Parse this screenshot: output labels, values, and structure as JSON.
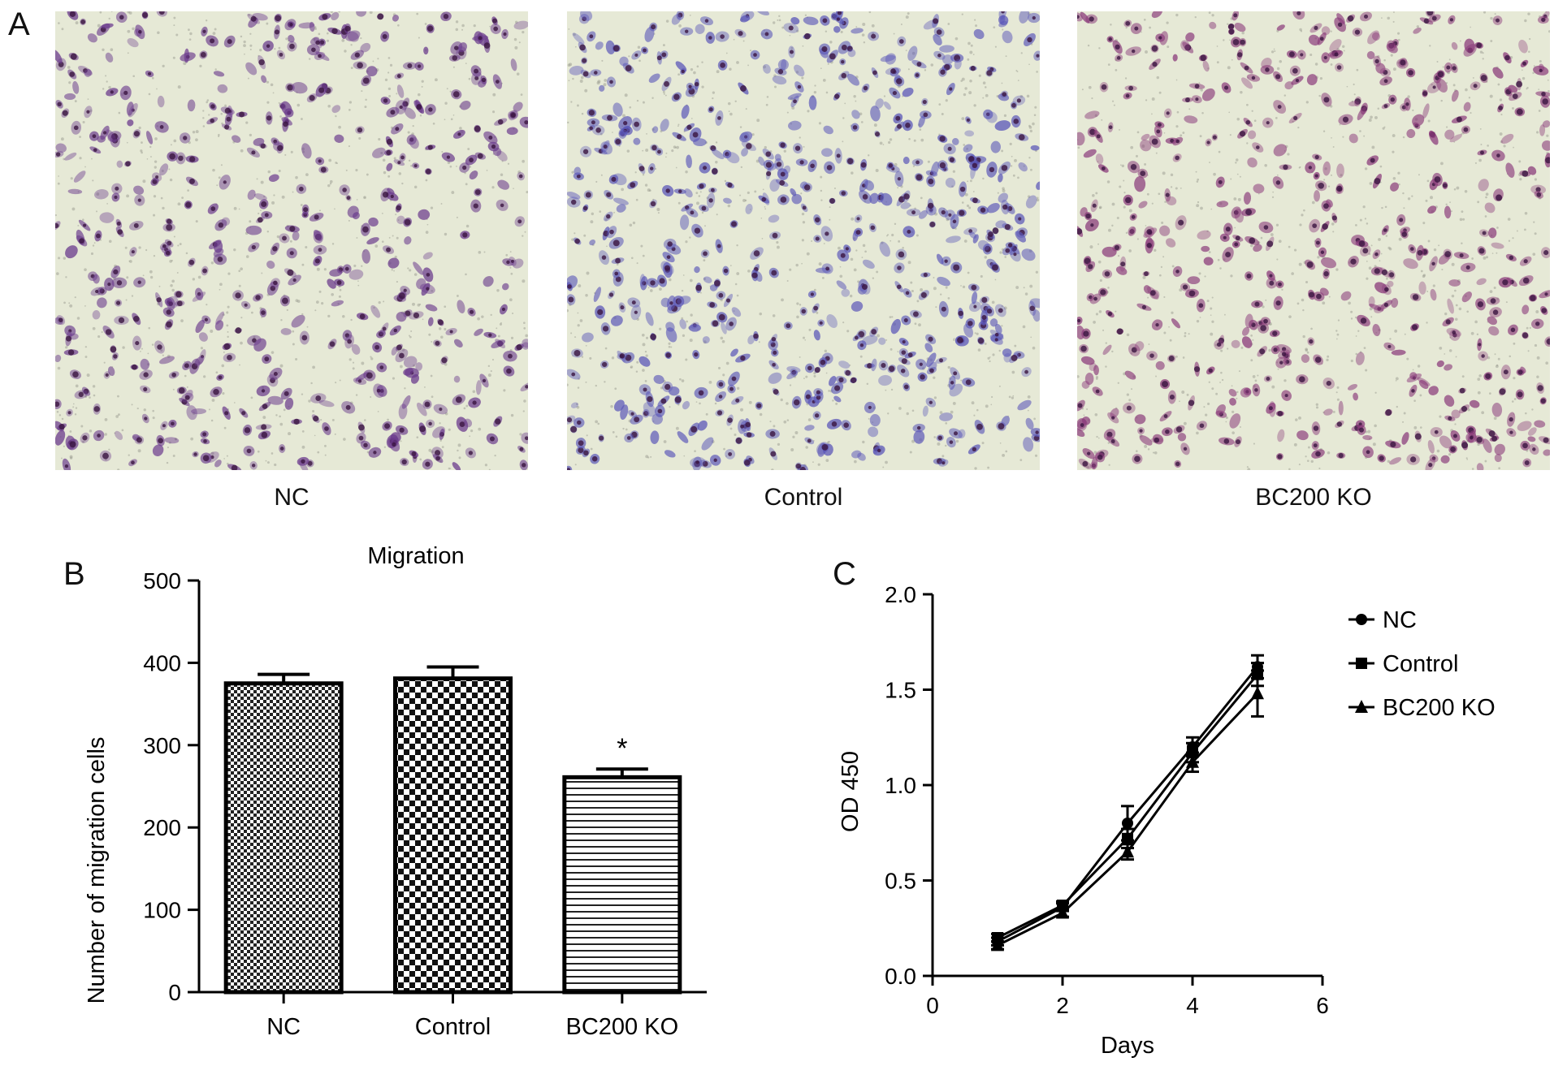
{
  "panel_labels": {
    "a": "A",
    "b": "B",
    "c": "C"
  },
  "micrographs": [
    {
      "caption": "NC",
      "cell_tint": "#6a3a8c"
    },
    {
      "caption": "Control",
      "cell_tint": "#5a56b8"
    },
    {
      "caption": "BC200 KO",
      "cell_tint": "#8a3a7a"
    }
  ],
  "chart_data": [
    {
      "type": "bar",
      "title": "Migration",
      "ylabel": "Number of migration cells",
      "xlabel": "",
      "ylim": [
        0,
        500
      ],
      "yticks": [
        "0",
        "100",
        "200",
        "300",
        "400",
        "500"
      ],
      "categories": [
        "NC",
        "Control",
        "BC200 KO"
      ],
      "values": [
        375,
        381,
        261
      ],
      "errors": [
        11,
        14,
        10
      ],
      "patterns": [
        "fine-check",
        "coarse-check",
        "horizontal-lines"
      ],
      "significance": [
        "",
        "",
        "*"
      ]
    },
    {
      "type": "line",
      "xlabel": "Days",
      "ylabel": "OD 450",
      "xlim": [
        0,
        6
      ],
      "ylim": [
        0,
        2
      ],
      "xticks": [
        "0",
        "2",
        "4",
        "6"
      ],
      "yticks": [
        "0.0",
        "0.5",
        "1.0",
        "1.5",
        "2.0"
      ],
      "x": [
        1,
        2,
        3,
        4,
        5
      ],
      "legend_position": "right",
      "series": [
        {
          "name": "NC",
          "marker": "circle",
          "values": [
            0.18,
            0.36,
            0.8,
            1.2,
            1.62
          ],
          "errors": [
            0.02,
            0.02,
            0.09,
            0.05,
            0.06
          ]
        },
        {
          "name": "Control",
          "marker": "square",
          "values": [
            0.2,
            0.37,
            0.72,
            1.17,
            1.58
          ],
          "errors": [
            0.02,
            0.02,
            0.05,
            0.05,
            0.06
          ]
        },
        {
          "name": "BC200 KO",
          "marker": "triangle",
          "values": [
            0.16,
            0.33,
            0.65,
            1.12,
            1.48
          ],
          "errors": [
            0.02,
            0.02,
            0.04,
            0.05,
            0.12
          ]
        }
      ]
    }
  ]
}
